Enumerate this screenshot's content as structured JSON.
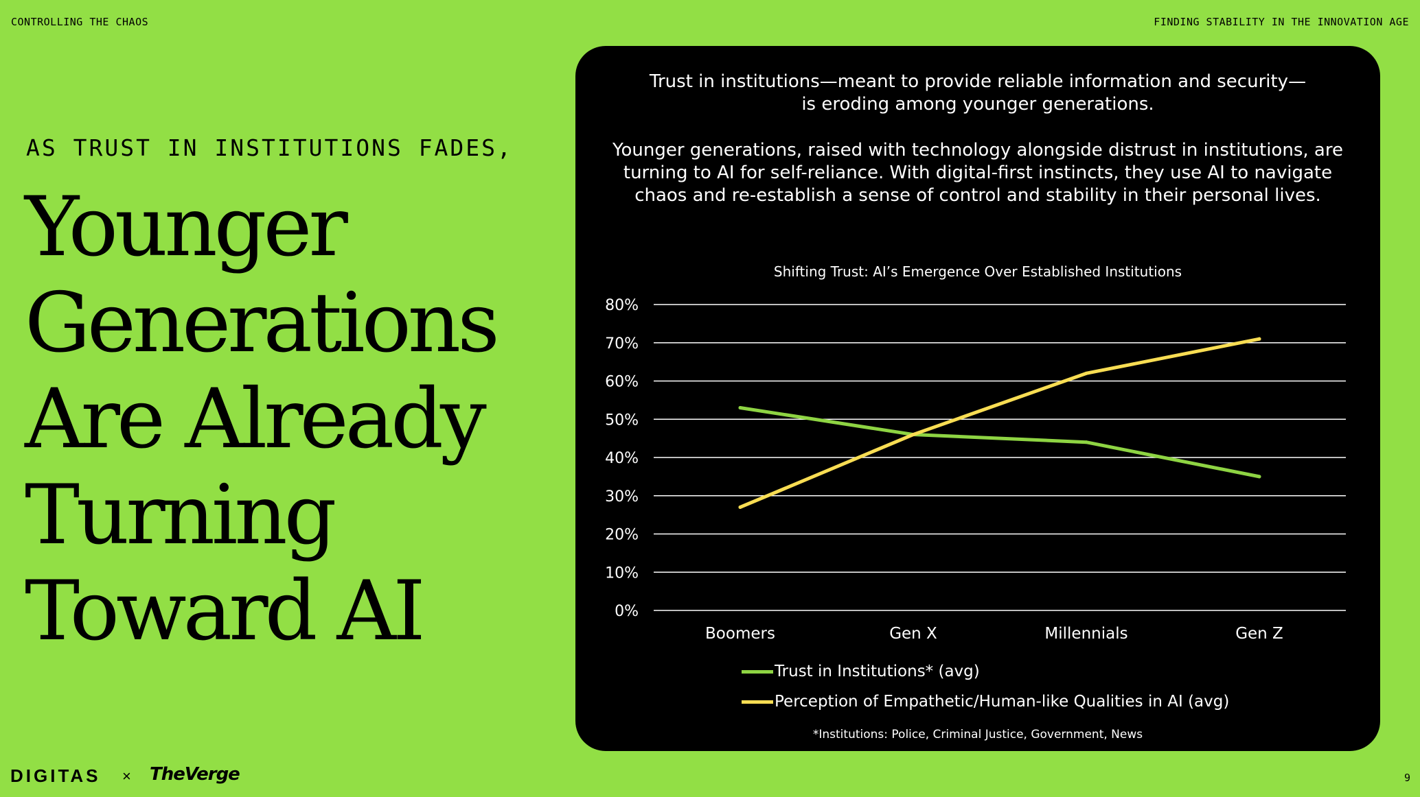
{
  "header": {
    "left": "CONTROLLING THE CHAOS",
    "right": "FINDING STABILITY IN THE INNOVATION AGE"
  },
  "kicker": "AS TRUST IN INSTITUTIONS FADES,",
  "headline": {
    "lines": [
      "Younger",
      "Generations",
      "Are Already",
      "Turning",
      "Toward AI"
    ]
  },
  "panel": {
    "intro_1": "Trust in institutions—meant to provide reliable information and security— is eroding among younger generations.",
    "intro_2": "Younger generations, raised with technology alongside distrust in institutions, are turning to AI for self-reliance. With digital-first instincts, they use AI to navigate chaos and re-establish a sense of control and stability in their personal lives.",
    "footnote": "*Institutions: Police, Criminal Justice, Government, News"
  },
  "chart_data": {
    "type": "line",
    "title": "Shifting Trust: AI’s Emergence Over Established Institutions",
    "categories": [
      "Boomers",
      "Gen X",
      "Millennials",
      "Gen Z"
    ],
    "series": [
      {
        "name": "Trust in Institutions* (avg)",
        "values": [
          53,
          46,
          44,
          35
        ],
        "color": "#8ed443"
      },
      {
        "name": "Perception of Empathetic/Human-like Qualities in AI (avg)",
        "values": [
          27,
          46,
          62,
          71
        ],
        "color": "#f8dd53"
      }
    ],
    "y_ticks": [
      "0%",
      "10%",
      "20%",
      "30%",
      "40%",
      "50%",
      "60%",
      "70%",
      "80%"
    ],
    "ylim": [
      0,
      80
    ],
    "grid": true,
    "legend_position": "bottom",
    "xlabel": "",
    "ylabel": ""
  },
  "footer": {
    "brand_left": "DIGITAS",
    "separator": "×",
    "brand_right": "TheVerge",
    "page_number": "9"
  },
  "colors": {
    "background": "#92df45",
    "panel": "#000000",
    "grid": "#ffffff"
  }
}
